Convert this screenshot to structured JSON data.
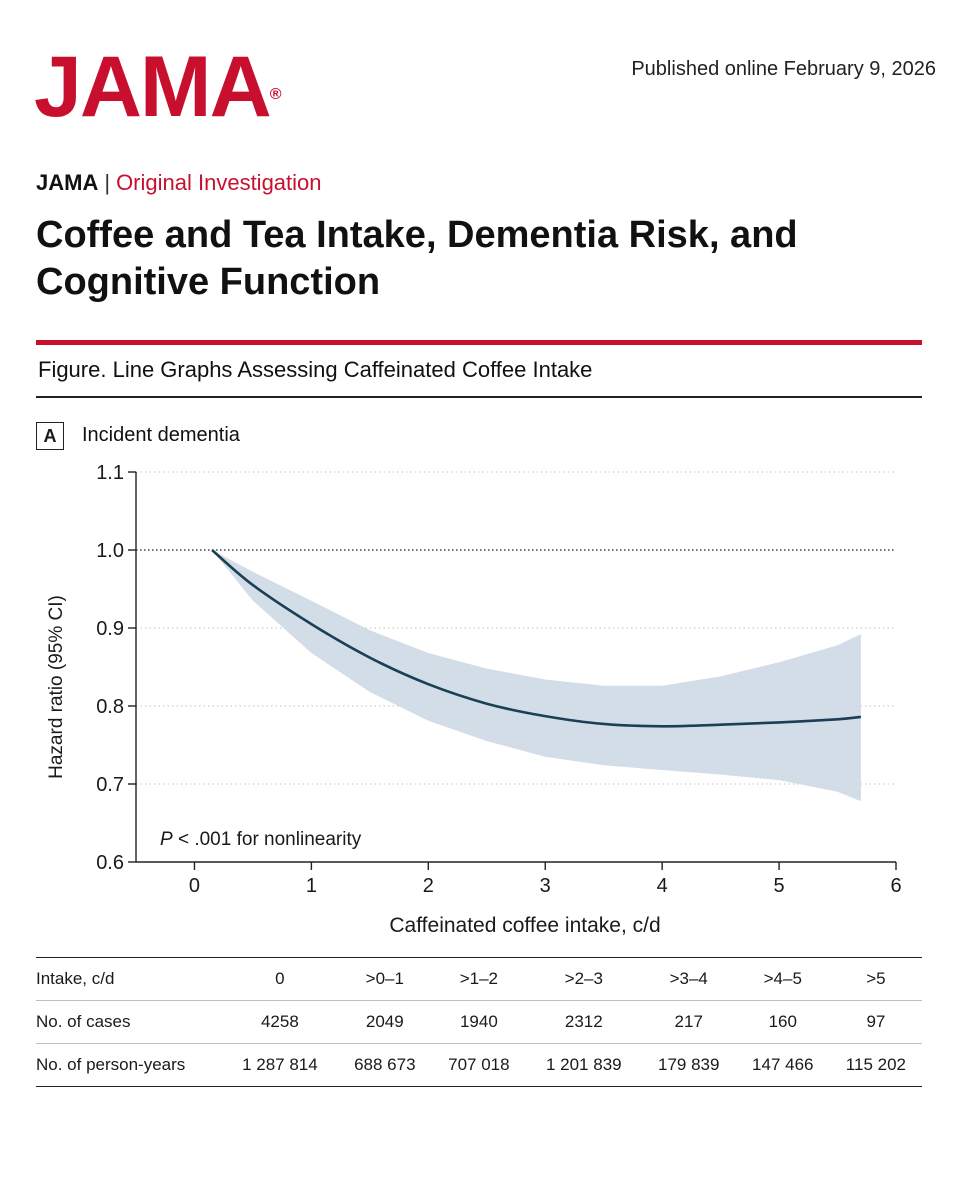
{
  "header": {
    "logo": "JAMA",
    "logo_mark": "®",
    "published": "Published online February 9, 2026"
  },
  "article": {
    "journal": "JAMA",
    "separator": "|",
    "section": "Original Investigation",
    "title": "Coffee and Tea Intake, Dementia Risk, and Cognitive Function"
  },
  "figure": {
    "caption": "Figure. Line Graphs Assessing Caffeinated Coffee Intake",
    "panel_letter": "A",
    "panel_title": "Incident dementia"
  },
  "colors": {
    "brand_red": "#c8102e",
    "line": "#1b3f54",
    "band": "#d3dde8"
  },
  "chart_data": {
    "type": "line",
    "title": "Incident dementia",
    "xlabel": "Caffeinated coffee intake, c/d",
    "ylabel": "Hazard ratio (95% CI)",
    "xlim": [
      -0.5,
      6
    ],
    "ylim": [
      0.6,
      1.1
    ],
    "xticks": [
      0,
      1,
      2,
      3,
      4,
      5,
      6
    ],
    "yticks": [
      0.6,
      0.7,
      0.8,
      0.9,
      1.0,
      1.1
    ],
    "ytick_labels": [
      "0.6",
      "0.7",
      "0.8",
      "0.9",
      "1.0",
      "1.1"
    ],
    "grid": "horizontal dotted",
    "reference_line": 1.0,
    "annotation": {
      "p_symbol": "P",
      "text": " < .001 for nonlinearity"
    },
    "series": [
      {
        "x": [
          0.15,
          0.5,
          1.0,
          1.5,
          2.0,
          2.5,
          3.0,
          3.5,
          4.0,
          4.5,
          5.0,
          5.5,
          5.7
        ],
        "y": [
          1.0,
          0.955,
          0.905,
          0.862,
          0.828,
          0.803,
          0.787,
          0.777,
          0.774,
          0.776,
          0.779,
          0.783,
          0.786
        ],
        "lower": [
          1.0,
          0.935,
          0.868,
          0.818,
          0.781,
          0.755,
          0.735,
          0.724,
          0.718,
          0.712,
          0.705,
          0.69,
          0.678
        ],
        "upper": [
          1.0,
          0.972,
          0.935,
          0.897,
          0.868,
          0.848,
          0.834,
          0.826,
          0.826,
          0.838,
          0.856,
          0.878,
          0.892
        ]
      }
    ]
  },
  "table": {
    "rows": [
      {
        "label": "Intake, c/d",
        "values": [
          "0",
          ">0–1",
          ">1–2",
          ">2–3",
          ">3–4",
          ">4–5",
          ">5"
        ]
      },
      {
        "label": "No. of cases",
        "values": [
          "4258",
          "2049",
          "1940",
          "2312",
          "217",
          "160",
          "97"
        ]
      },
      {
        "label": "No. of person-years",
        "values": [
          "1 287 814",
          "688 673",
          "707 018",
          "1 201 839",
          "179 839",
          "147 466",
          "115 202"
        ]
      }
    ]
  }
}
